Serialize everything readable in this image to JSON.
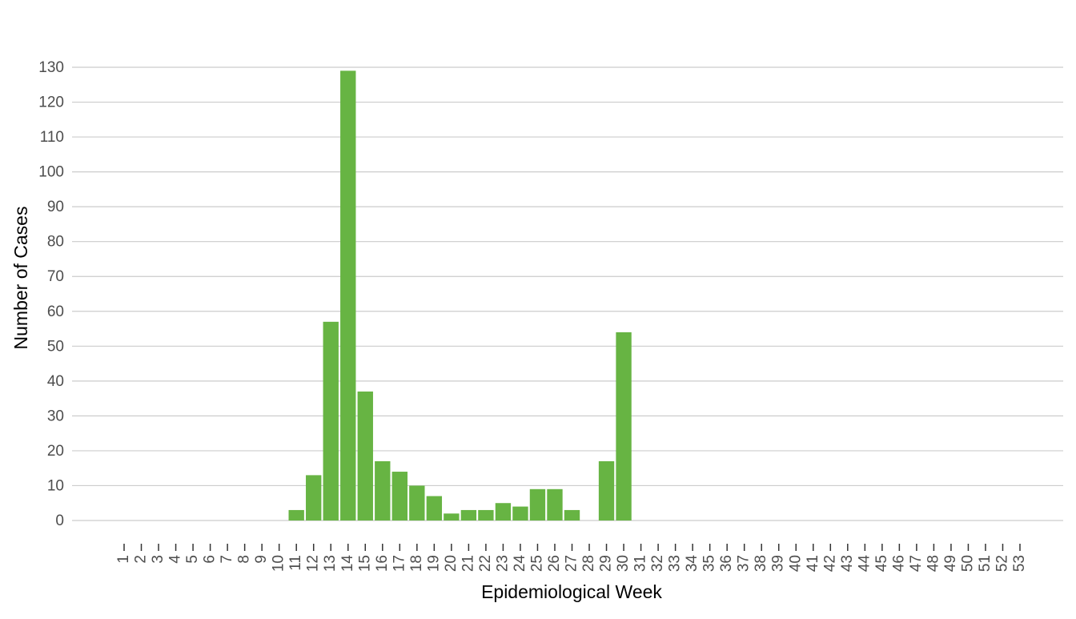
{
  "chart_data": {
    "type": "bar",
    "x_label": "Epidemiological Week",
    "y_label": "Number of Cases",
    "categories": [
      "1",
      "2",
      "3",
      "4",
      "5",
      "6",
      "7",
      "8",
      "9",
      "10",
      "11",
      "12",
      "13",
      "14",
      "15",
      "16",
      "17",
      "18",
      "19",
      "20",
      "21",
      "22",
      "23",
      "24",
      "25",
      "26",
      "27",
      "28",
      "29",
      "30",
      "31",
      "32",
      "33",
      "34",
      "35",
      "36",
      "37",
      "38",
      "39",
      "40",
      "41",
      "42",
      "43",
      "44",
      "45",
      "46",
      "47",
      "48",
      "49",
      "50",
      "51",
      "52",
      "53"
    ],
    "values": [
      0,
      0,
      0,
      0,
      0,
      0,
      0,
      0,
      0,
      0,
      3,
      13,
      57,
      129,
      37,
      17,
      14,
      10,
      7,
      2,
      3,
      3,
      5,
      4,
      9,
      9,
      3,
      0,
      17,
      54,
      0,
      0,
      0,
      0,
      0,
      0,
      0,
      0,
      0,
      0,
      0,
      0,
      0,
      0,
      0,
      0,
      0,
      0,
      0,
      0,
      0,
      0,
      0
    ],
    "color": "#67b443",
    "ylim": [
      0,
      130
    ],
    "yticks": [
      0,
      10,
      20,
      30,
      40,
      50,
      60,
      70,
      80,
      90,
      100,
      110,
      120,
      130
    ],
    "grid": true
  }
}
